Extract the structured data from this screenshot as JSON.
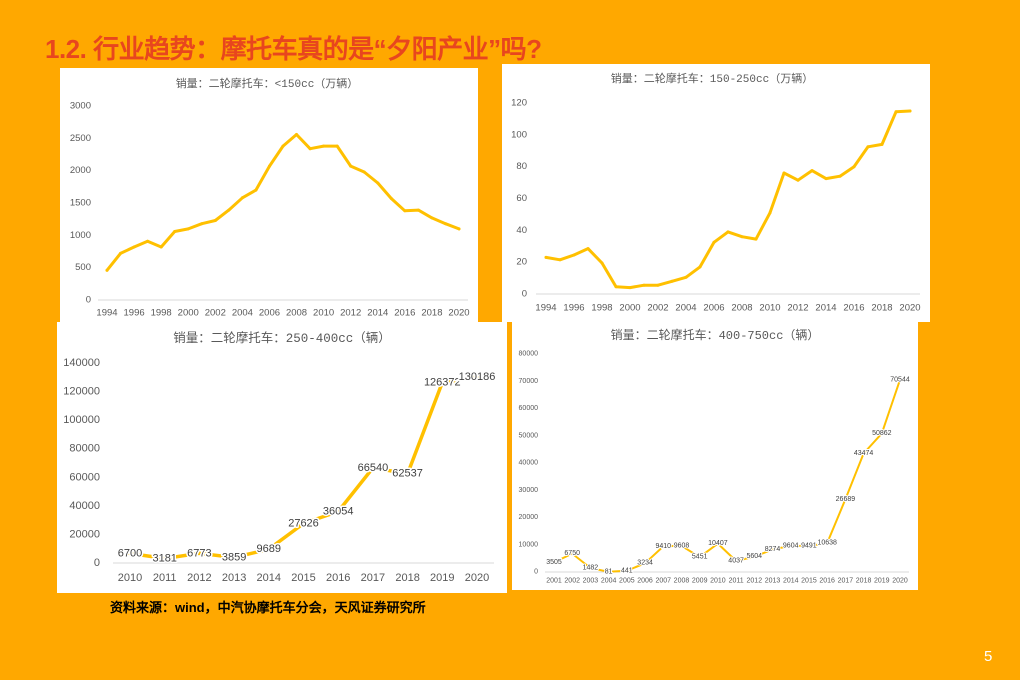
{
  "slide": {
    "title": "1.2. 行业趋势：摩托车真的是“夕阳产业”吗?",
    "source_note": "资料来源：wind，中汽协摩托车分会，天风证券研究所",
    "page_number": "5"
  },
  "colors": {
    "background": "#FFA800",
    "title": "#E8461E",
    "chart_background": "#FFFFFF",
    "series_line": "#FFC000",
    "axis_text": "#595959",
    "axis_line": "#D9D9D9",
    "data_label": "#404040",
    "source_note": "#000000",
    "page_number": "#FFFFFF"
  },
  "chart_data": [
    {
      "type": "line",
      "title": "销量：二轮摩托车：<150cc（万辆）",
      "x": [
        1994,
        1995,
        1996,
        1997,
        1998,
        1999,
        2000,
        2001,
        2002,
        2003,
        2004,
        2005,
        2006,
        2007,
        2008,
        2009,
        2010,
        2011,
        2012,
        2013,
        2014,
        2015,
        2016,
        2017,
        2018,
        2019,
        2020
      ],
      "xticks": [
        1994,
        1996,
        1998,
        2000,
        2002,
        2004,
        2006,
        2008,
        2010,
        2012,
        2014,
        2016,
        2018,
        2020
      ],
      "series": [
        {
          "values": [
            460,
            720,
            820,
            910,
            820,
            1060,
            1100,
            1180,
            1230,
            1390,
            1580,
            1700,
            2070,
            2380,
            2560,
            2340,
            2380,
            2380,
            2070,
            1980,
            1810,
            1570,
            1380,
            1390,
            1270,
            1180,
            1100
          ]
        }
      ],
      "ylim": [
        0,
        3000
      ],
      "yticks": [
        0,
        500,
        1000,
        1500,
        2000,
        2500,
        3000
      ],
      "data_labels": false,
      "grid": false,
      "legend": "none"
    },
    {
      "type": "line",
      "title": "销量：二轮摩托车：150-250cc（万辆）",
      "x": [
        1994,
        1995,
        1996,
        1997,
        1998,
        1999,
        2000,
        2001,
        2002,
        2003,
        2004,
        2005,
        2006,
        2007,
        2008,
        2009,
        2010,
        2011,
        2012,
        2013,
        2014,
        2015,
        2016,
        2017,
        2018,
        2019,
        2020
      ],
      "xticks": [
        1994,
        1996,
        1998,
        2000,
        2002,
        2004,
        2006,
        2008,
        2010,
        2012,
        2014,
        2016,
        2018,
        2020
      ],
      "series": [
        {
          "values": [
            23,
            21.5,
            24.5,
            28.5,
            19.5,
            4.5,
            4,
            5.5,
            5.5,
            8,
            10.5,
            17,
            32.5,
            39,
            36,
            34.5,
            51,
            76,
            71.5,
            77.5,
            72.5,
            74,
            80,
            92.5,
            94,
            114.5,
            115
          ]
        }
      ],
      "ylim": [
        0,
        120
      ],
      "yticks": [
        0,
        20,
        40,
        60,
        80,
        100,
        120
      ],
      "data_labels": false,
      "grid": false,
      "legend": "none"
    },
    {
      "type": "line",
      "title": "销量：二轮摩托车：250-400cc（辆）",
      "x": [
        2010,
        2011,
        2012,
        2013,
        2014,
        2015,
        2016,
        2017,
        2018,
        2019,
        2020
      ],
      "xticks": [
        2010,
        2011,
        2012,
        2013,
        2014,
        2015,
        2016,
        2017,
        2018,
        2019,
        2020
      ],
      "series": [
        {
          "values": [
            6700,
            3181,
            6773,
            3859,
            9689,
            27626,
            36054,
            66540,
            62537,
            126372,
            130186
          ]
        }
      ],
      "ylim": [
        0,
        140000
      ],
      "yticks": [
        0,
        20000,
        40000,
        60000,
        80000,
        100000,
        120000,
        140000
      ],
      "data_labels": true,
      "grid": false,
      "legend": "none"
    },
    {
      "type": "line",
      "title": "销量：二轮摩托车：400-750cc（辆）",
      "x": [
        2001,
        2002,
        2003,
        2004,
        2005,
        2006,
        2007,
        2008,
        2009,
        2010,
        2011,
        2012,
        2013,
        2014,
        2015,
        2016,
        2017,
        2018,
        2019,
        2020
      ],
      "xticks": [
        2001,
        2002,
        2003,
        2004,
        2005,
        2006,
        2007,
        2008,
        2009,
        2010,
        2011,
        2012,
        2013,
        2014,
        2015,
        2016,
        2017,
        2018,
        2019,
        2020
      ],
      "series": [
        {
          "values": [
            3505,
            6750,
            1482,
            81,
            441,
            3234,
            9410,
            9608,
            5451,
            10407,
            4037,
            5604,
            8274,
            9604,
            9491,
            10638,
            26689,
            43474,
            50862,
            70544
          ]
        }
      ],
      "ylim": [
        0,
        80000
      ],
      "yticks": [
        0,
        10000,
        20000,
        30000,
        40000,
        50000,
        60000,
        70000,
        80000
      ],
      "data_labels": true,
      "grid": false,
      "legend": "none"
    }
  ]
}
